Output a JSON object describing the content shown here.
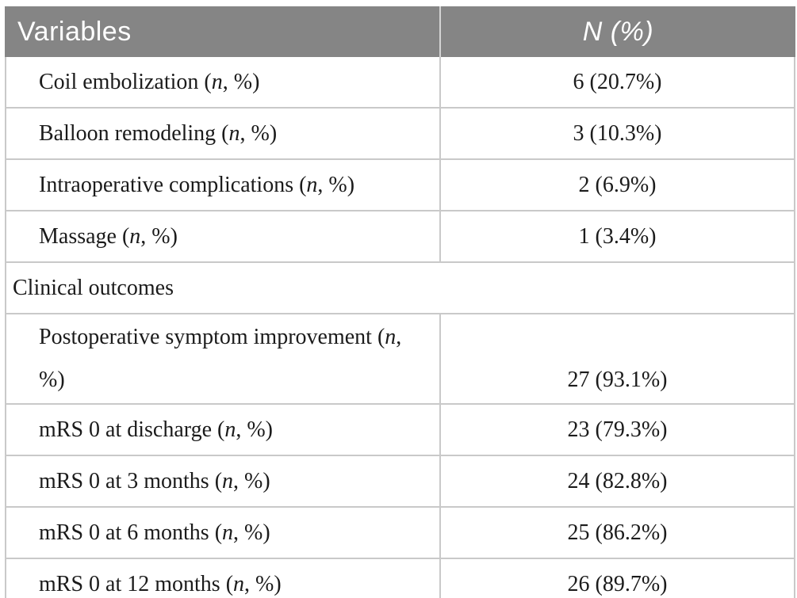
{
  "colors": {
    "page_bg": "#ffffff",
    "header_bg": "#858585",
    "header_text": "#ffffff",
    "header_divider": "#d4d4d4",
    "row_border": "#c9c9c9",
    "body_text": "#1b1b1b"
  },
  "table": {
    "columns": [
      {
        "label": "Variables",
        "parts": [
          {
            "t": "Variables",
            "i": false
          }
        ]
      },
      {
        "label": "N (%)",
        "parts": [
          {
            "t": "N (%)",
            "i": true
          }
        ]
      }
    ],
    "rows": [
      {
        "kind": "data",
        "indent": true,
        "label": "Coil embolization (n, %)",
        "label_parts": [
          {
            "t": "Coil embolization ("
          },
          {
            "t": "n",
            "i": true
          },
          {
            "t": ", %)"
          }
        ],
        "value": "6 (20.7%)"
      },
      {
        "kind": "data",
        "indent": true,
        "label": "Balloon remodeling (n, %)",
        "label_parts": [
          {
            "t": "Balloon remodeling ("
          },
          {
            "t": "n",
            "i": true
          },
          {
            "t": ", %)"
          }
        ],
        "value": "3 (10.3%)"
      },
      {
        "kind": "data",
        "indent": true,
        "label": "Intraoperative complications (n, %)",
        "label_parts": [
          {
            "t": "Intraoperative complications ("
          },
          {
            "t": "n",
            "i": true
          },
          {
            "t": ", %)"
          }
        ],
        "value": "2 (6.9%)"
      },
      {
        "kind": "data",
        "indent": true,
        "label": "Massage (n, %)",
        "label_parts": [
          {
            "t": "Massage ("
          },
          {
            "t": "n",
            "i": true
          },
          {
            "t": ", %)"
          }
        ],
        "value": "1 (3.4%)"
      },
      {
        "kind": "section",
        "indent": false,
        "label": "Clinical outcomes",
        "label_parts": [
          {
            "t": "Clinical outcomes"
          }
        ]
      },
      {
        "kind": "data",
        "indent": true,
        "label": "Postoperative symptom improvement (n, %)",
        "label_parts": [
          {
            "t": "Postoperative symptom improvement ("
          },
          {
            "t": "n",
            "i": true
          },
          {
            "t": ", %)"
          }
        ],
        "value": "27 (93.1%)",
        "value_bottom": true
      },
      {
        "kind": "data",
        "indent": true,
        "label": "mRS 0 at discharge (n, %)",
        "label_parts": [
          {
            "t": "mRS 0 at discharge ("
          },
          {
            "t": "n",
            "i": true
          },
          {
            "t": ", %)"
          }
        ],
        "value": "23 (79.3%)"
      },
      {
        "kind": "data",
        "indent": true,
        "label": "mRS 0 at 3 months (n, %)",
        "label_parts": [
          {
            "t": "mRS 0 at 3 months ("
          },
          {
            "t": "n",
            "i": true
          },
          {
            "t": ", %)"
          }
        ],
        "value": "24 (82.8%)"
      },
      {
        "kind": "data",
        "indent": true,
        "label": "mRS 0 at 6 months (n, %)",
        "label_parts": [
          {
            "t": "mRS 0 at 6 months ("
          },
          {
            "t": "n",
            "i": true
          },
          {
            "t": ", %)"
          }
        ],
        "value": "25 (86.2%)"
      },
      {
        "kind": "data",
        "indent": true,
        "label": "mRS 0 at 12 months (n, %)",
        "label_parts": [
          {
            "t": "mRS 0 at 12 months ("
          },
          {
            "t": "n",
            "i": true
          },
          {
            "t": ", %)"
          }
        ],
        "value": "26 (89.7%)"
      }
    ]
  },
  "chart_data": {
    "type": "table",
    "columns": [
      "Variables",
      "N (%)"
    ],
    "rows": [
      [
        "Coil embolization (n, %)",
        "6 (20.7%)"
      ],
      [
        "Balloon remodeling (n, %)",
        "3 (10.3%)"
      ],
      [
        "Intraoperative complications (n, %)",
        "2 (6.9%)"
      ],
      [
        "Massage (n, %)",
        "1 (3.4%)"
      ],
      [
        "Clinical outcomes",
        ""
      ],
      [
        "Postoperative symptom improvement (n, %)",
        "27 (93.1%)"
      ],
      [
        "mRS 0 at discharge (n, %)",
        "23 (79.3%)"
      ],
      [
        "mRS 0 at 3 months (n, %)",
        "24 (82.8%)"
      ],
      [
        "mRS 0 at 6 months (n, %)",
        "25 (86.2%)"
      ],
      [
        "mRS 0 at 12 months (n, %)",
        "26 (89.7%)"
      ]
    ]
  }
}
